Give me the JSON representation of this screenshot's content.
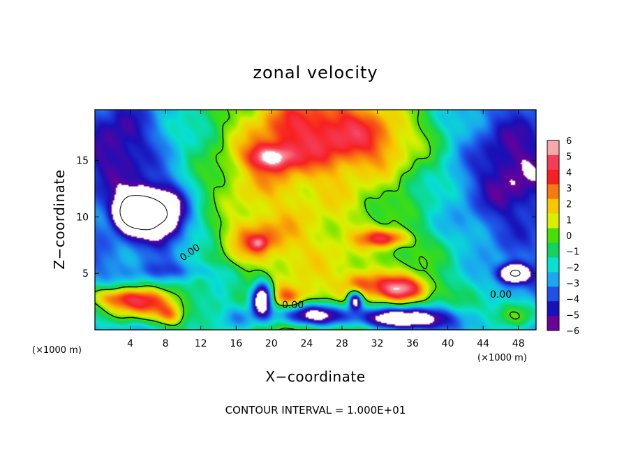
{
  "chart_data": {
    "type": "heatmap",
    "title": "zonal velocity",
    "xlabel": "X−coordinate",
    "ylabel": "Z−coordinate",
    "x_unit_left": "(×1000 m)",
    "x_unit_right": "(×1000 m)",
    "xlim": [
      0,
      50
    ],
    "ylim": [
      0,
      19.5
    ],
    "x_ticks": [
      4,
      8,
      12,
      16,
      20,
      24,
      28,
      32,
      36,
      40,
      44,
      48
    ],
    "y_ticks": [
      5,
      10,
      15
    ],
    "colorbar": {
      "levels": [
        6,
        5,
        4,
        3,
        2,
        1,
        0,
        -1,
        -2,
        -3,
        -4,
        -5,
        -6
      ],
      "labels": [
        "6",
        "5",
        "4",
        "3",
        "2",
        "1",
        "0",
        "−1",
        "−2",
        "−3",
        "−4",
        "−5",
        "−6"
      ],
      "colors": [
        "#f7a8a8",
        "#f53d5a",
        "#f72020",
        "#f77a10",
        "#f7c800",
        "#d8f000",
        "#48e000",
        "#12d35c",
        "#08e0d0",
        "#1aa8f0",
        "#2050e8",
        "#1810b8",
        "#6a0098"
      ],
      "over_color": "#ffffff",
      "under_color": "#ffffff"
    },
    "contour_label": "0.00",
    "contour_interval_text": "CONTOUR INTERVAL = 1.000E+01",
    "blobs": [
      {
        "x": 25,
        "y": 17.5,
        "sx": 9,
        "sy": 3.2,
        "a": 3.2
      },
      {
        "x": 20,
        "y": 15.3,
        "sx": 2.6,
        "sy": 1.1,
        "a": 4.5
      },
      {
        "x": 17,
        "y": 13,
        "sx": 5,
        "sy": 3,
        "a": 1.6
      },
      {
        "x": 33,
        "y": 16.5,
        "sx": 6,
        "sy": 3,
        "a": 1.8
      },
      {
        "x": 3,
        "y": 16,
        "sx": 4,
        "sy": 4,
        "a": -2.4
      },
      {
        "x": 47,
        "y": 14,
        "sx": 5,
        "sy": 5,
        "a": -2.6
      },
      {
        "x": 4.5,
        "y": 10.5,
        "sx": 2.0,
        "sy": 1.5,
        "a": -12
      },
      {
        "x": 7.4,
        "y": 10.2,
        "sx": 2.7,
        "sy": 2.4,
        "a": -7.5
      },
      {
        "x": 18,
        "y": 8,
        "sx": 4,
        "sy": 2,
        "a": 3
      },
      {
        "x": 33,
        "y": 8.1,
        "sx": 2.8,
        "sy": 0.8,
        "a": 4.5
      },
      {
        "x": 18.6,
        "y": 7.7,
        "sx": 0.9,
        "sy": 0.6,
        "a": 2.5
      },
      {
        "x": 5,
        "y": 2.3,
        "sx": 5,
        "sy": 1.6,
        "a": 6.5
      },
      {
        "x": 2,
        "y": 3.0,
        "sx": 3.5,
        "sy": 0.9,
        "a": 3
      },
      {
        "x": 8.5,
        "y": 1.2,
        "sx": 1.6,
        "sy": 0.9,
        "a": 3
      },
      {
        "x": 35,
        "y": 3.6,
        "sx": 3.2,
        "sy": 1.2,
        "a": 6.5
      },
      {
        "x": 30,
        "y": 4.2,
        "sx": 2,
        "sy": 1,
        "a": 2.5
      },
      {
        "x": 22,
        "y": 2.8,
        "sx": 2.2,
        "sy": 1.0,
        "a": 3
      },
      {
        "x": 19,
        "y": 2.8,
        "sx": 1.2,
        "sy": 1.5,
        "a": -9
      },
      {
        "x": 16,
        "y": 1.0,
        "sx": 2.0,
        "sy": 1.2,
        "a": -3
      },
      {
        "x": 25,
        "y": 1.3,
        "sx": 4.5,
        "sy": 1.1,
        "a": -8
      },
      {
        "x": 29.5,
        "y": 2.6,
        "sx": 0.8,
        "sy": 0.8,
        "a": -7
      },
      {
        "x": 35,
        "y": 1.0,
        "sx": 4.5,
        "sy": 1.0,
        "a": -8
      },
      {
        "x": 47.5,
        "y": 5.0,
        "sx": 1.6,
        "sy": 0.8,
        "a": -8
      },
      {
        "x": 44,
        "y": 2.5,
        "sx": 4,
        "sy": 1.5,
        "a": 1.5
      },
      {
        "x": 47.5,
        "y": 1.2,
        "sx": 2.5,
        "sy": 1.2,
        "a": 3
      },
      {
        "x": 10,
        "y": 5.2,
        "sx": 5,
        "sy": 0.8,
        "a": -1.5
      },
      {
        "x": 14,
        "y": 3,
        "sx": 2,
        "sy": 2,
        "a": -1
      },
      {
        "x": 38,
        "y": 6,
        "sx": 6,
        "sy": 2,
        "a": 1
      }
    ]
  }
}
